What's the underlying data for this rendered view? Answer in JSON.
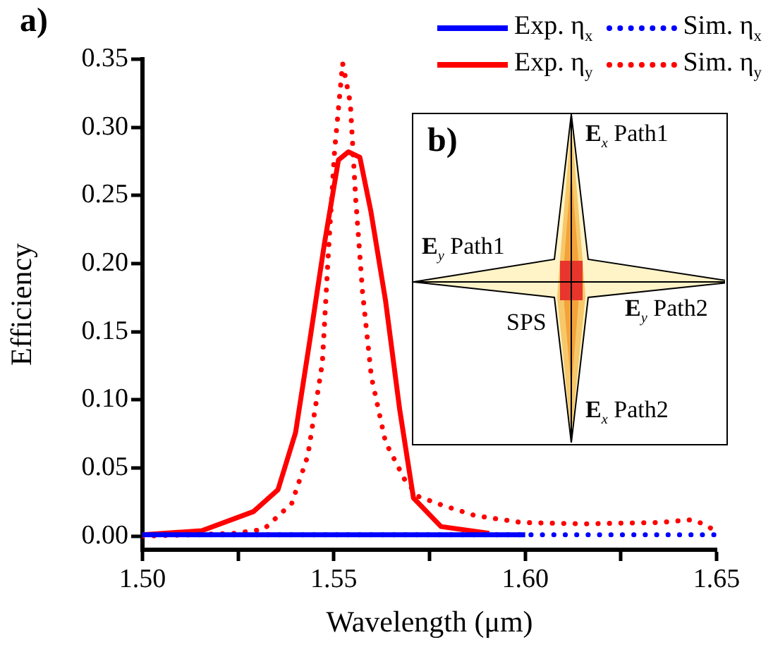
{
  "chart_data": {
    "type": "line",
    "xlabel": "Wavelength (μm)",
    "ylabel": "Efficiency",
    "xlim": [
      1.5,
      1.65
    ],
    "ylim": [
      -0.01,
      0.35
    ],
    "xticks": [
      {
        "value": 1.5,
        "label": "1.50"
      },
      {
        "value": 1.525,
        "label": null
      },
      {
        "value": 1.55,
        "label": "1.55"
      },
      {
        "value": 1.575,
        "label": null
      },
      {
        "value": 1.6,
        "label": "1.60"
      },
      {
        "value": 1.625,
        "label": null
      },
      {
        "value": 1.65,
        "label": "1.65"
      }
    ],
    "yticks": [
      {
        "value": 0,
        "label": "0.00"
      },
      {
        "value": 0.05,
        "label": "0.05"
      },
      {
        "value": 0.1,
        "label": "0.10"
      },
      {
        "value": 0.15,
        "label": "0.15"
      },
      {
        "value": 0.2,
        "label": "0.20"
      },
      {
        "value": 0.25,
        "label": "0.25"
      },
      {
        "value": 0.3,
        "label": "0.30"
      },
      {
        "value": 0.35,
        "label": "0.35"
      }
    ],
    "grid": false,
    "legend": "top right",
    "marker": "none",
    "annotations": [
      "a)",
      "b)",
      "E$_{x}$ Path1",
      "E$_{y}$ Path1",
      "SPS",
      "E$_{y}$ Path2",
      "E$_{x}$ Path2"
    ],
    "series": [
      {
        "name": "Exp. η$_{x}$",
        "color": "#0000ff",
        "line_style": "solid",
        "x": [
          1.5,
          1.55,
          1.6
        ],
        "values": [
          0.001,
          0.001,
          0.001
        ]
      },
      {
        "name": "Sim. η$_{x}$",
        "color": "#0000ff",
        "line_style": "dotted",
        "x": [
          1.5,
          1.55,
          1.6,
          1.65
        ],
        "values": [
          0.001,
          0.001,
          0.001,
          0.001
        ]
      },
      {
        "name": "Exp. η$_{y}$",
        "color": "#ff0000",
        "line_style": "solid",
        "x": [
          1.5,
          1.5155,
          1.529,
          1.5354,
          1.54,
          1.5438,
          1.5475,
          1.5512,
          1.5538,
          1.5568,
          1.5597,
          1.5635,
          1.5672,
          1.5708,
          1.578,
          1.5906
        ],
        "values": [
          0.001,
          0.004,
          0.018,
          0.034,
          0.076,
          0.145,
          0.214,
          0.276,
          0.282,
          0.278,
          0.238,
          0.173,
          0.093,
          0.028,
          0.007,
          0.002
        ]
      },
      {
        "name": "Sim. η$_{y}$",
        "color": "#ff0000",
        "line_style": "dotted",
        "x": [
          1.5,
          1.524,
          1.5317,
          1.539,
          1.5432,
          1.547,
          1.5487,
          1.5502,
          1.5523,
          1.5543,
          1.5557,
          1.5575,
          1.5598,
          1.5635,
          1.5686,
          1.5722,
          1.578,
          1.587,
          1.599,
          1.615,
          1.635,
          1.6435,
          1.6465,
          1.649,
          1.65
        ],
        "values": [
          0.0,
          0.002,
          0.005,
          0.024,
          0.059,
          0.127,
          0.214,
          0.283,
          0.347,
          0.318,
          0.248,
          0.179,
          0.117,
          0.069,
          0.041,
          0.029,
          0.023,
          0.015,
          0.01,
          0.009,
          0.01,
          0.012,
          0.009,
          0.005,
          0.005
        ]
      }
    ]
  }
}
